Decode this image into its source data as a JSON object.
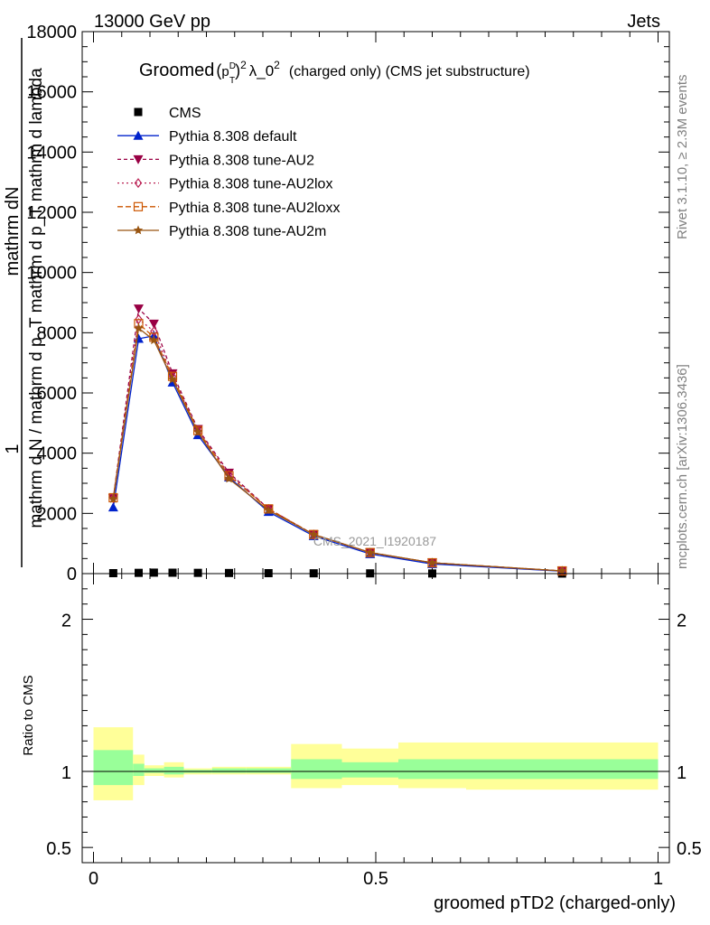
{
  "header": {
    "left": "13000 GeV pp",
    "right": "Jets"
  },
  "side_labels": {
    "rivet": "Rivet 3.1.10, ≥ 2.3M events",
    "mcplots": "mcplots.cern.ch [arXiv:1306.3436]"
  },
  "watermark": "CMS_2021_I1920187",
  "chart_data": {
    "type": "line",
    "title": "Groomed (p_T^D)^2 λ_0^2  (charged only) (CMS jet substructure)",
    "title_parts": {
      "groomed": "Groomed",
      "pt": "p",
      "pt_sub": "T",
      "pt_sup": "D",
      "sq": "2",
      "lambda": "λ_0",
      "lambda_sup": "2",
      "rest": "(charged only) (CMS jet substructure)"
    },
    "xlabel": "groomed pTD2 (charged-only)",
    "ylabel_main": {
      "one": "1",
      "numerator": "mathrm dN",
      "denominator": "mathrm d N / mathrm d p_T mathrm d p_T mathrm d lambda"
    },
    "ylabel_ratio": "Ratio to CMS",
    "xlim": [
      -0.02,
      1.02
    ],
    "ylim": [
      0,
      18000
    ],
    "ratio_ylim": [
      0.4,
      2.3
    ],
    "x_ticks": [
      0,
      0.5,
      1
    ],
    "x_tick_labels": [
      "0",
      "0.5",
      "1"
    ],
    "y_ticks": [
      0,
      2000,
      4000,
      6000,
      8000,
      10000,
      12000,
      14000,
      16000,
      18000
    ],
    "y_tick_labels": [
      "0",
      "2000",
      "4000",
      "6000",
      "8000",
      "10000",
      "12000",
      "14000",
      "16000",
      "18000"
    ],
    "ratio_ticks": [
      0.5,
      1,
      2
    ],
    "ratio_tick_labels": [
      "0.5",
      "1",
      "2"
    ],
    "x": [
      0.035,
      0.08,
      0.107,
      0.14,
      0.185,
      0.24,
      0.31,
      0.39,
      0.49,
      0.6,
      0.83
    ],
    "series": [
      {
        "name": "CMS",
        "color": "#000000",
        "marker": "square",
        "values": [
          15,
          25,
          32,
          30,
          25,
          20,
          15,
          10,
          8,
          5,
          2
        ]
      },
      {
        "name": "Pythia 8.308 default",
        "color": "#0022cc",
        "marker": "triangle-up",
        "dash": "",
        "values": [
          2200,
          7800,
          7900,
          6350,
          4600,
          3200,
          2050,
          1250,
          650,
          320,
          80
        ]
      },
      {
        "name": "Pythia 8.308 tune-AU2",
        "color": "#990044",
        "marker": "triangle-down",
        "dash": "4,3",
        "values": [
          2500,
          8800,
          8300,
          6650,
          4800,
          3350,
          2150,
          1300,
          700,
          360,
          90
        ]
      },
      {
        "name": "Pythia 8.308 tune-AU2lox",
        "color": "#bb2255",
        "marker": "diamond-open",
        "dash": "2,3",
        "values": [
          2500,
          8450,
          8050,
          6550,
          4750,
          3300,
          2150,
          1300,
          700,
          360,
          90
        ]
      },
      {
        "name": "Pythia 8.308 tune-AU2loxx",
        "color": "#cc5500",
        "marker": "square-open",
        "dash": "6,3",
        "values": [
          2520,
          8300,
          7850,
          6550,
          4750,
          3250,
          2150,
          1300,
          700,
          360,
          90
        ]
      },
      {
        "name": "Pythia 8.308 tune-AU2m",
        "color": "#995511",
        "marker": "star",
        "dash": "",
        "values": [
          2480,
          8150,
          7750,
          6450,
          4700,
          3150,
          2100,
          1300,
          700,
          360,
          90
        ]
      }
    ],
    "ratio_bands": {
      "edges": [
        0.0,
        0.07,
        0.09,
        0.125,
        0.16,
        0.21,
        0.27,
        0.35,
        0.44,
        0.54,
        0.66,
        1.0
      ],
      "inner": [
        [
          0.91,
          1.14
        ],
        [
          0.97,
          1.05
        ],
        [
          0.99,
          1.02
        ],
        [
          0.98,
          1.03
        ],
        [
          0.99,
          1.01
        ],
        [
          0.99,
          1.02
        ],
        [
          0.99,
          1.02
        ],
        [
          0.95,
          1.08
        ],
        [
          0.96,
          1.06
        ],
        [
          0.95,
          1.08
        ],
        [
          0.95,
          1.08
        ]
      ],
      "outer": [
        [
          0.81,
          1.29
        ],
        [
          0.91,
          1.11
        ],
        [
          0.97,
          1.04
        ],
        [
          0.96,
          1.06
        ],
        [
          0.98,
          1.02
        ],
        [
          0.98,
          1.03
        ],
        [
          0.98,
          1.03
        ],
        [
          0.89,
          1.18
        ],
        [
          0.91,
          1.15
        ],
        [
          0.89,
          1.19
        ],
        [
          0.88,
          1.19
        ]
      ],
      "inner_color": "#99ff99",
      "outer_color": "#ffff99"
    }
  }
}
